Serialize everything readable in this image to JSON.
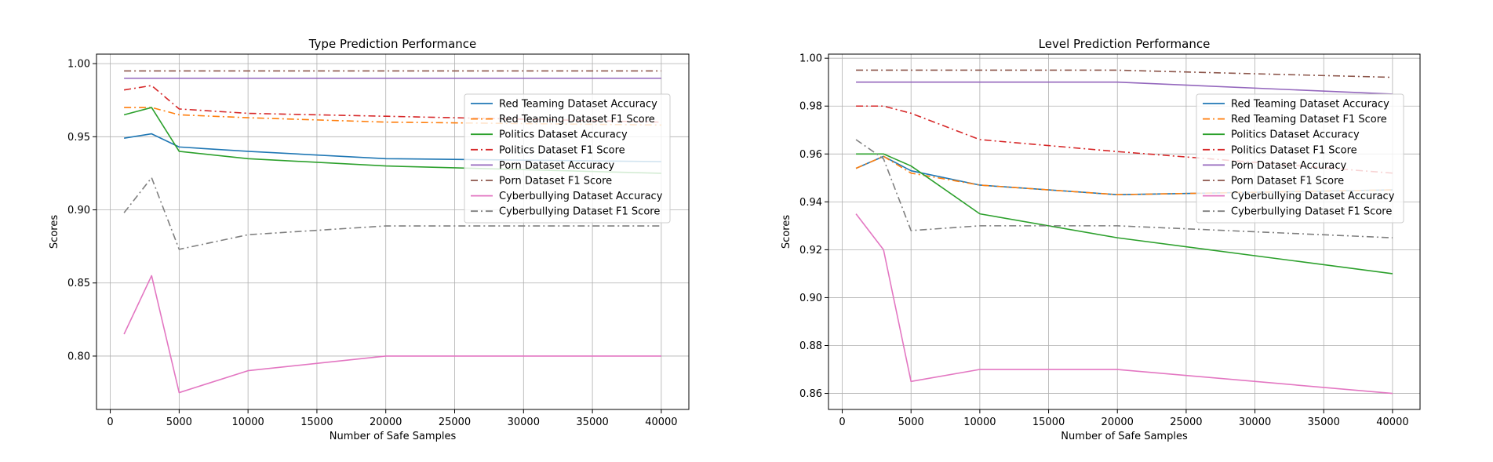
{
  "chart_data": [
    {
      "type": "line",
      "title": "Type Prediction Performance",
      "xlabel": "Number of Safe Samples",
      "ylabel": "Scores",
      "xlim": [
        -1000,
        42000
      ],
      "ylim": [
        0.7635,
        1.0065
      ],
      "xticks": [
        0,
        5000,
        10000,
        15000,
        20000,
        25000,
        30000,
        35000,
        40000
      ],
      "yticks": [
        0.8,
        0.85,
        0.9,
        0.95,
        1.0
      ],
      "ytick_labels": [
        "0.80",
        "0.85",
        "0.90",
        "0.95",
        "1.00"
      ],
      "grid": true,
      "legend_position": "upper-right",
      "x": [
        1000,
        3000,
        5000,
        10000,
        20000,
        40000
      ],
      "series": [
        {
          "name": "Red Teaming Dataset Accuracy",
          "color": "#1f77b4",
          "dash": "solid",
          "values": [
            0.949,
            0.952,
            0.943,
            0.94,
            0.935,
            0.933
          ]
        },
        {
          "name": "Red Teaming Dataset F1 Score",
          "color": "#ff7f0e",
          "dash": "dashdot",
          "values": [
            0.97,
            0.97,
            0.965,
            0.963,
            0.96,
            0.958
          ]
        },
        {
          "name": "Politics Dataset Accuracy",
          "color": "#2ca02c",
          "dash": "solid",
          "values": [
            0.965,
            0.97,
            0.94,
            0.935,
            0.93,
            0.925
          ]
        },
        {
          "name": "Politics Dataset F1 Score",
          "color": "#d62728",
          "dash": "dashdot",
          "values": [
            0.982,
            0.985,
            0.969,
            0.966,
            0.964,
            0.96
          ]
        },
        {
          "name": "Porn Dataset Accuracy",
          "color": "#9467bd",
          "dash": "solid",
          "values": [
            0.99,
            0.99,
            0.99,
            0.99,
            0.99,
            0.99
          ]
        },
        {
          "name": "Porn Dataset F1 Score",
          "color": "#8c564b",
          "dash": "dashdot",
          "values": [
            0.995,
            0.995,
            0.995,
            0.995,
            0.995,
            0.995
          ]
        },
        {
          "name": "Cyberbullying Dataset Accuracy",
          "color": "#e377c2",
          "dash": "solid",
          "values": [
            0.815,
            0.855,
            0.775,
            0.79,
            0.8,
            0.8
          ]
        },
        {
          "name": "Cyberbullying Dataset F1 Score",
          "color": "#7f7f7f",
          "dash": "dashdot",
          "values": [
            0.898,
            0.922,
            0.873,
            0.883,
            0.889,
            0.889
          ]
        }
      ]
    },
    {
      "type": "line",
      "title": "Level Prediction Performance",
      "xlabel": "Number of Safe Samples",
      "ylabel": "Scores",
      "xlim": [
        -1000,
        42000
      ],
      "ylim": [
        0.8533,
        1.0017
      ],
      "xticks": [
        0,
        5000,
        10000,
        15000,
        20000,
        25000,
        30000,
        35000,
        40000
      ],
      "yticks": [
        0.86,
        0.88,
        0.9,
        0.92,
        0.94,
        0.96,
        0.98,
        1.0
      ],
      "ytick_labels": [
        "0.86",
        "0.88",
        "0.90",
        "0.92",
        "0.94",
        "0.96",
        "0.98",
        "1.00"
      ],
      "grid": true,
      "legend_position": "upper-right",
      "x": [
        1000,
        3000,
        5000,
        10000,
        20000,
        40000
      ],
      "series": [
        {
          "name": "Red Teaming Dataset Accuracy",
          "color": "#1f77b4",
          "dash": "solid",
          "values": [
            0.954,
            0.959,
            0.953,
            0.947,
            0.943,
            0.945
          ]
        },
        {
          "name": "Red Teaming Dataset F1 Score",
          "color": "#ff7f0e",
          "dash": "dashdot",
          "values": [
            0.954,
            0.959,
            0.952,
            0.947,
            0.943,
            0.945
          ]
        },
        {
          "name": "Politics Dataset Accuracy",
          "color": "#2ca02c",
          "dash": "solid",
          "values": [
            0.96,
            0.96,
            0.955,
            0.935,
            0.925,
            0.91
          ]
        },
        {
          "name": "Politics Dataset F1 Score",
          "color": "#d62728",
          "dash": "dashdot",
          "values": [
            0.98,
            0.98,
            0.977,
            0.966,
            0.961,
            0.952
          ]
        },
        {
          "name": "Porn Dataset Accuracy",
          "color": "#9467bd",
          "dash": "solid",
          "values": [
            0.99,
            0.99,
            0.99,
            0.99,
            0.99,
            0.985
          ]
        },
        {
          "name": "Porn Dataset F1 Score",
          "color": "#8c564b",
          "dash": "dashdot",
          "values": [
            0.995,
            0.995,
            0.995,
            0.995,
            0.995,
            0.992
          ]
        },
        {
          "name": "Cyberbullying Dataset Accuracy",
          "color": "#e377c2",
          "dash": "solid",
          "values": [
            0.935,
            0.92,
            0.865,
            0.87,
            0.87,
            0.86
          ]
        },
        {
          "name": "Cyberbullying Dataset F1 Score",
          "color": "#7f7f7f",
          "dash": "dashdot",
          "values": [
            0.966,
            0.958,
            0.928,
            0.93,
            0.93,
            0.925
          ]
        }
      ]
    }
  ]
}
